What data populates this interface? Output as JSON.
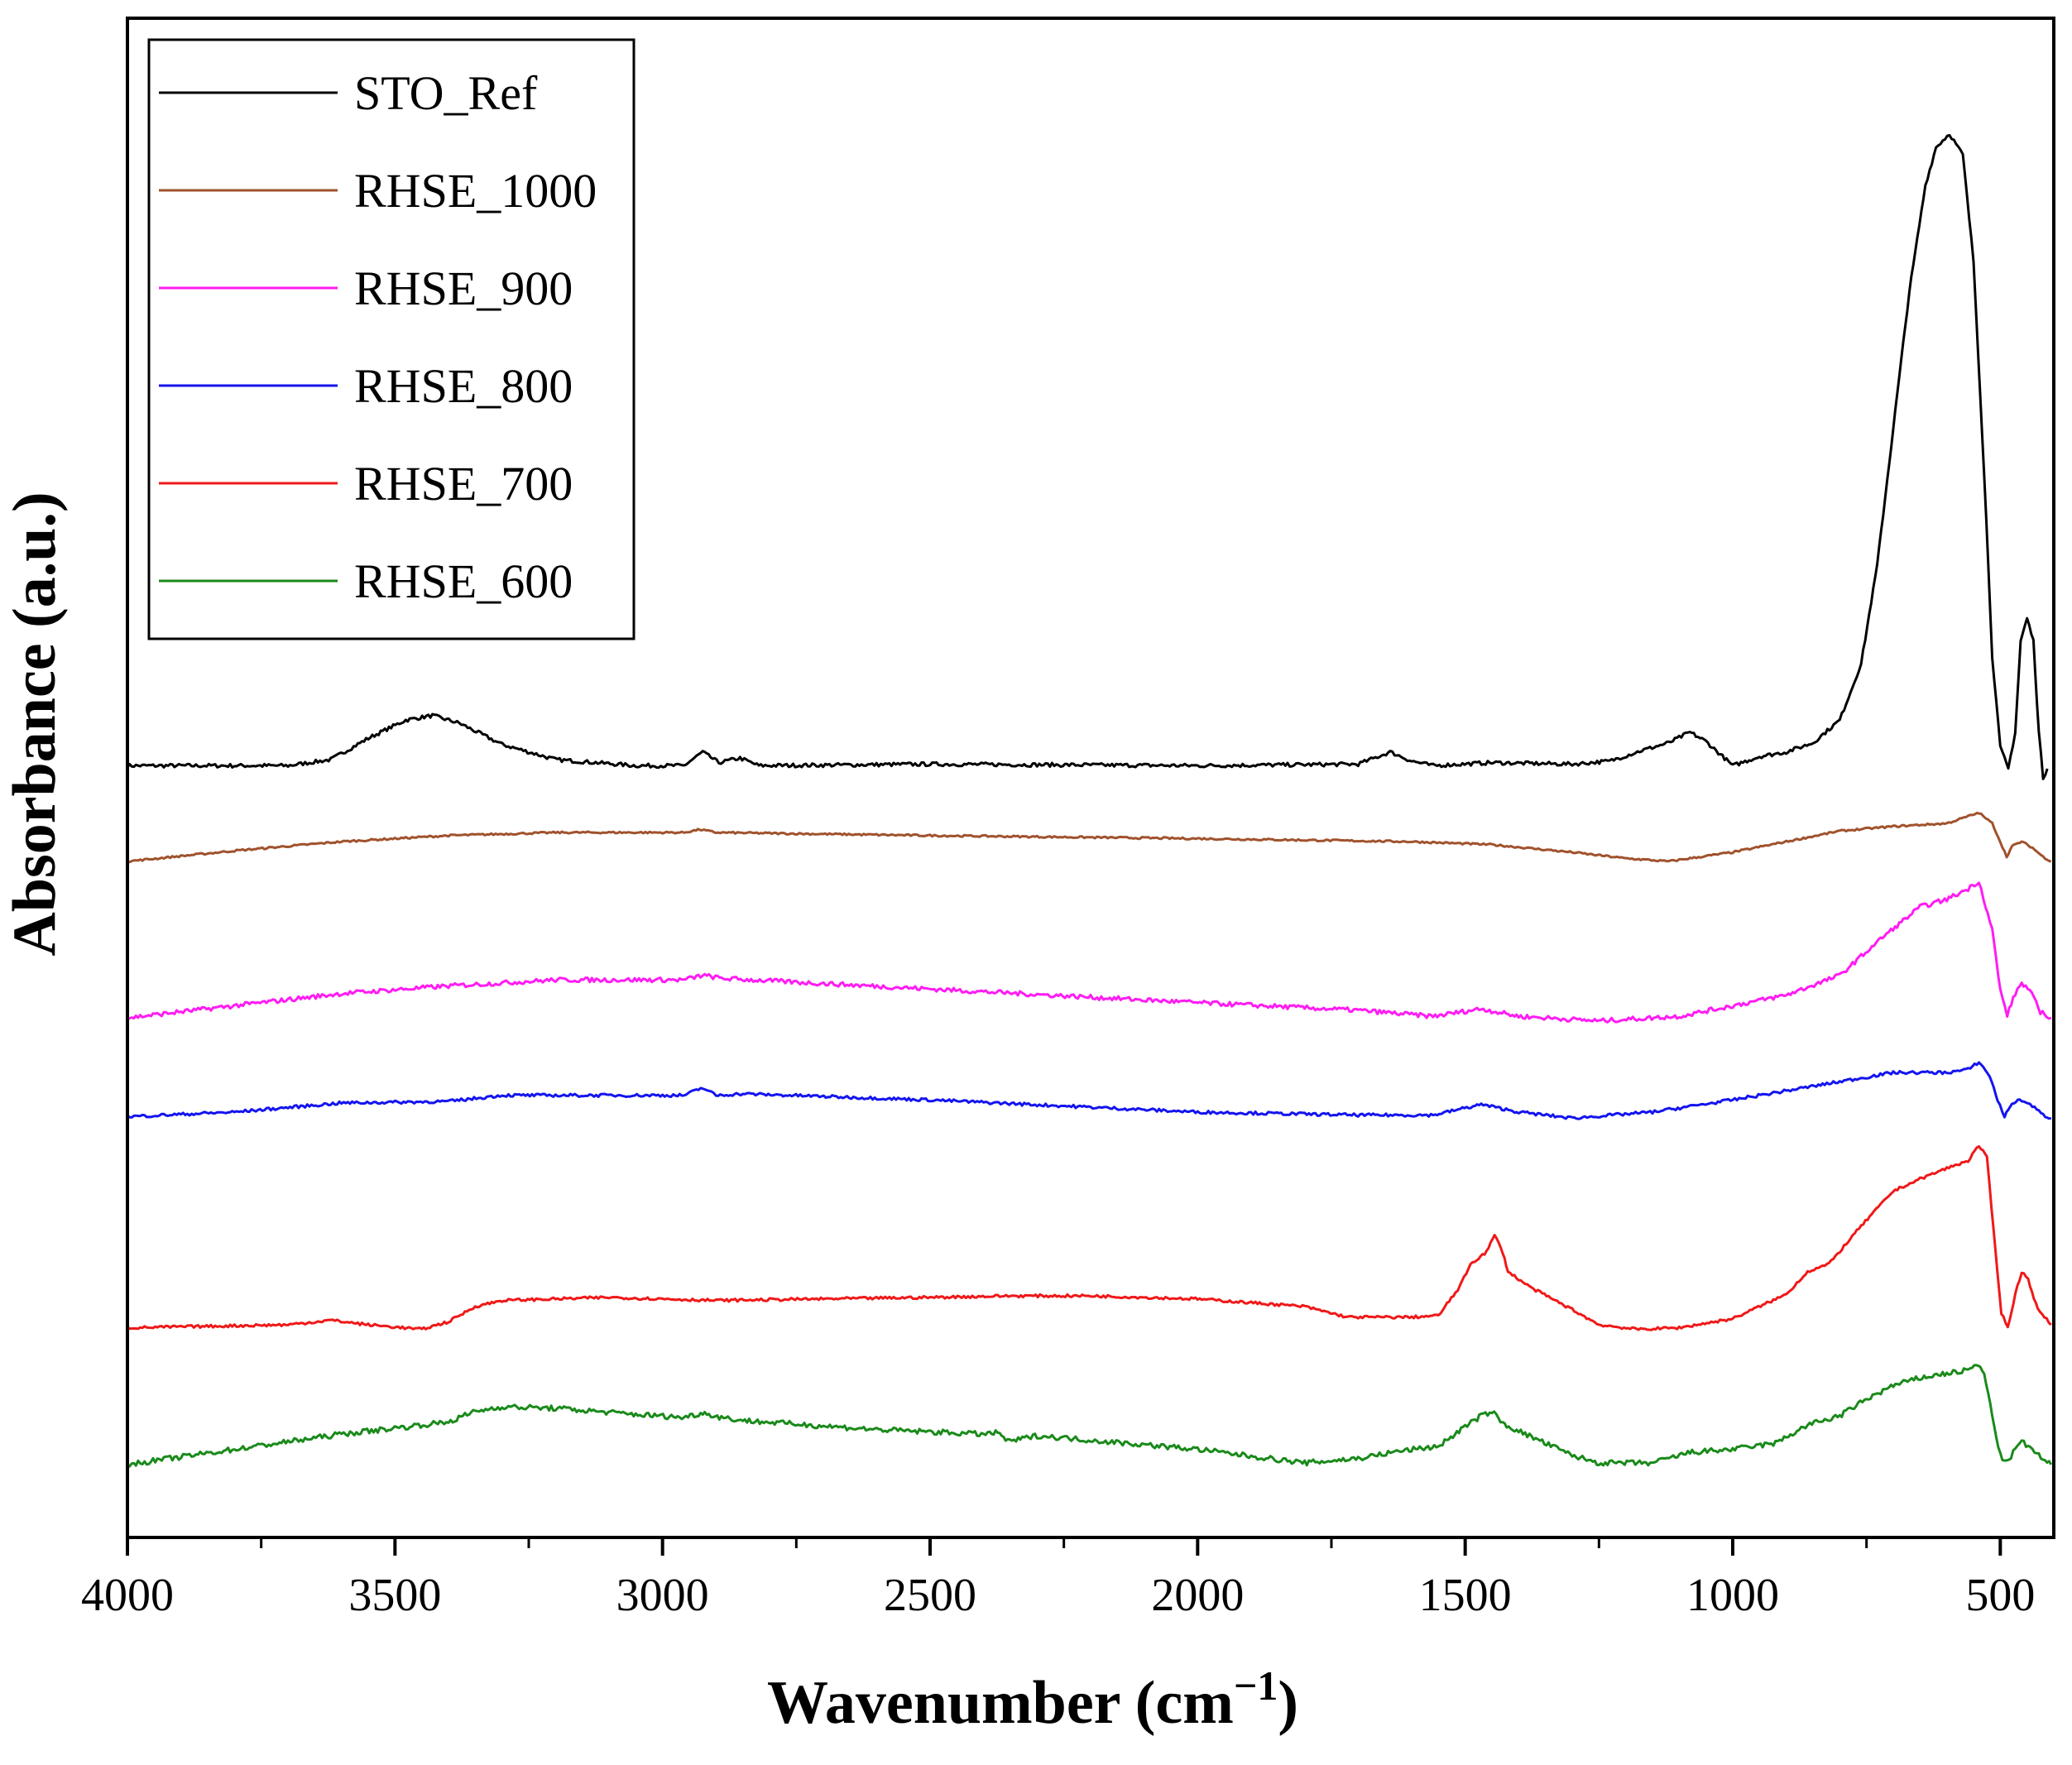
{
  "chart_data": {
    "type": "line",
    "title": "",
    "xlabel": "Wavenumber",
    "xlabel_unit_base": "cm",
    "xlabel_unit_exp": "−1",
    "xlabel_prefix": "(",
    "xlabel_suffix": ")",
    "ylabel": "Absorbance (a.u.)",
    "xlim": [
      4000,
      400
    ],
    "ylim": [
      0,
      100
    ],
    "x_reversed": true,
    "x_ticks": [
      4000,
      3500,
      3000,
      2500,
      2000,
      1500,
      1000,
      500
    ],
    "x_tick_labels": [
      "4000",
      "3500",
      "3000",
      "2500",
      "2000",
      "1500",
      "1000",
      "500"
    ],
    "y_ticks_shown": false,
    "legend": {
      "position": "top-left",
      "entries": [
        "STO_Ref",
        "RHSE_1000",
        "RHSE_900",
        "RHSE_800",
        "RHSE_700",
        "RHSE_600"
      ]
    },
    "series": [
      {
        "name": "STO_Ref",
        "color": "#000000",
        "noise": 0.25,
        "points": [
          [
            4000,
            50.8
          ],
          [
            3700,
            50.8
          ],
          [
            3620,
            51.2
          ],
          [
            3550,
            52.6
          ],
          [
            3480,
            53.8
          ],
          [
            3430,
            54.1
          ],
          [
            3380,
            53.6
          ],
          [
            3300,
            52.2
          ],
          [
            3200,
            51.2
          ],
          [
            3050,
            50.8
          ],
          [
            2960,
            50.8
          ],
          [
            2925,
            51.7
          ],
          [
            2895,
            51.0
          ],
          [
            2855,
            51.3
          ],
          [
            2820,
            50.8
          ],
          [
            2500,
            50.9
          ],
          [
            2000,
            50.8
          ],
          [
            1700,
            50.9
          ],
          [
            1640,
            51.7
          ],
          [
            1600,
            51.1
          ],
          [
            1560,
            50.8
          ],
          [
            1450,
            51.0
          ],
          [
            1300,
            50.9
          ],
          [
            1230,
            51.1
          ],
          [
            1170,
            51.8
          ],
          [
            1120,
            52.3
          ],
          [
            1080,
            53.0
          ],
          [
            1050,
            52.4
          ],
          [
            1000,
            50.8
          ],
          [
            950,
            51.4
          ],
          [
            900,
            51.7
          ],
          [
            850,
            52.3
          ],
          [
            800,
            53.8
          ],
          [
            760,
            57.5
          ],
          [
            730,
            64.0
          ],
          [
            700,
            73.0
          ],
          [
            670,
            82.0
          ],
          [
            640,
            89.0
          ],
          [
            620,
            91.5
          ],
          [
            595,
            92.4
          ],
          [
            570,
            91.0
          ],
          [
            550,
            84.0
          ],
          [
            530,
            70.0
          ],
          [
            515,
            58.0
          ],
          [
            500,
            52.0
          ],
          [
            485,
            50.6
          ],
          [
            472,
            53.0
          ],
          [
            462,
            59.0
          ],
          [
            450,
            60.5
          ],
          [
            438,
            59.0
          ],
          [
            428,
            53.0
          ],
          [
            420,
            50.0
          ],
          [
            412,
            50.6
          ]
        ]
      },
      {
        "name": "RHSE_1000",
        "color": "#A0522D",
        "noise": 0.12,
        "points": [
          [
            4000,
            44.5
          ],
          [
            3800,
            45.2
          ],
          [
            3600,
            45.8
          ],
          [
            3400,
            46.2
          ],
          [
            3200,
            46.4
          ],
          [
            2960,
            46.4
          ],
          [
            2930,
            46.6
          ],
          [
            2900,
            46.4
          ],
          [
            2500,
            46.2
          ],
          [
            2000,
            46.0
          ],
          [
            1600,
            45.8
          ],
          [
            1450,
            45.6
          ],
          [
            1300,
            45.1
          ],
          [
            1200,
            44.7
          ],
          [
            1120,
            44.5
          ],
          [
            1000,
            45.1
          ],
          [
            900,
            45.8
          ],
          [
            800,
            46.5
          ],
          [
            700,
            46.8
          ],
          [
            600,
            47.0
          ],
          [
            540,
            47.7
          ],
          [
            515,
            47.0
          ],
          [
            500,
            45.8
          ],
          [
            488,
            44.8
          ],
          [
            478,
            45.5
          ],
          [
            460,
            45.8
          ],
          [
            440,
            45.4
          ],
          [
            420,
            44.8
          ],
          [
            405,
            44.5
          ]
        ]
      },
      {
        "name": "RHSE_900",
        "color": "#FF1CF3",
        "noise": 0.3,
        "points": [
          [
            4000,
            34.2
          ],
          [
            3800,
            35.0
          ],
          [
            3600,
            35.8
          ],
          [
            3400,
            36.3
          ],
          [
            3200,
            36.7
          ],
          [
            2960,
            36.7
          ],
          [
            2925,
            37.0
          ],
          [
            2890,
            36.8
          ],
          [
            2500,
            36.1
          ],
          [
            2000,
            35.2
          ],
          [
            1700,
            34.7
          ],
          [
            1560,
            34.3
          ],
          [
            1470,
            34.8
          ],
          [
            1400,
            34.3
          ],
          [
            1250,
            34.0
          ],
          [
            1100,
            34.3
          ],
          [
            1000,
            35.0
          ],
          [
            900,
            35.7
          ],
          [
            800,
            37.0
          ],
          [
            720,
            39.5
          ],
          [
            650,
            41.5
          ],
          [
            600,
            42.0
          ],
          [
            560,
            42.7
          ],
          [
            540,
            43.2
          ],
          [
            515,
            40.0
          ],
          [
            500,
            36.0
          ],
          [
            487,
            34.4
          ],
          [
            472,
            35.8
          ],
          [
            460,
            36.5
          ],
          [
            445,
            36.0
          ],
          [
            425,
            34.6
          ],
          [
            405,
            34.2
          ]
        ]
      },
      {
        "name": "RHSE_800",
        "color": "#1414F0",
        "noise": 0.2,
        "points": [
          [
            4000,
            27.7
          ],
          [
            3800,
            28.0
          ],
          [
            3600,
            28.6
          ],
          [
            3400,
            28.7
          ],
          [
            3300,
            29.1
          ],
          [
            3000,
            29.1
          ],
          [
            2960,
            29.1
          ],
          [
            2925,
            29.6
          ],
          [
            2900,
            29.1
          ],
          [
            2850,
            29.2
          ],
          [
            2500,
            28.8
          ],
          [
            2000,
            28.0
          ],
          [
            1700,
            27.8
          ],
          [
            1560,
            27.8
          ],
          [
            1470,
            28.5
          ],
          [
            1400,
            28.0
          ],
          [
            1300,
            27.6
          ],
          [
            1150,
            28.0
          ],
          [
            1000,
            28.8
          ],
          [
            900,
            29.4
          ],
          [
            800,
            30.0
          ],
          [
            700,
            30.6
          ],
          [
            600,
            30.6
          ],
          [
            560,
            30.8
          ],
          [
            540,
            31.3
          ],
          [
            520,
            30.4
          ],
          [
            505,
            28.8
          ],
          [
            492,
            27.7
          ],
          [
            478,
            28.6
          ],
          [
            460,
            28.8
          ],
          [
            440,
            28.4
          ],
          [
            420,
            27.8
          ],
          [
            405,
            27.6
          ]
        ]
      },
      {
        "name": "RHSE_700",
        "color": "#F01818",
        "noise": 0.18,
        "points": [
          [
            4000,
            13.8
          ],
          [
            3700,
            14.0
          ],
          [
            3620,
            14.3
          ],
          [
            3550,
            14.0
          ],
          [
            3450,
            13.7
          ],
          [
            3400,
            14.2
          ],
          [
            3350,
            15.2
          ],
          [
            3300,
            15.6
          ],
          [
            3100,
            15.8
          ],
          [
            2900,
            15.6
          ],
          [
            2500,
            15.8
          ],
          [
            2350,
            15.9
          ],
          [
            2200,
            15.9
          ],
          [
            2000,
            15.7
          ],
          [
            1800,
            15.2
          ],
          [
            1720,
            14.5
          ],
          [
            1600,
            14.5
          ],
          [
            1550,
            14.6
          ],
          [
            1510,
            16.5
          ],
          [
            1490,
            18.0
          ],
          [
            1460,
            18.8
          ],
          [
            1445,
            19.9
          ],
          [
            1430,
            18.8
          ],
          [
            1420,
            17.5
          ],
          [
            1380,
            16.5
          ],
          [
            1300,
            15.0
          ],
          [
            1250,
            14.0
          ],
          [
            1180,
            13.7
          ],
          [
            1100,
            13.8
          ],
          [
            1000,
            14.4
          ],
          [
            900,
            16.0
          ],
          [
            860,
            17.5
          ],
          [
            820,
            18.0
          ],
          [
            760,
            20.5
          ],
          [
            700,
            22.8
          ],
          [
            650,
            23.6
          ],
          [
            600,
            24.3
          ],
          [
            560,
            24.8
          ],
          [
            540,
            25.8
          ],
          [
            525,
            25.0
          ],
          [
            512,
            20.0
          ],
          [
            498,
            14.8
          ],
          [
            486,
            13.8
          ],
          [
            472,
            16.0
          ],
          [
            460,
            17.5
          ],
          [
            448,
            17.0
          ],
          [
            430,
            15.0
          ],
          [
            405,
            14.0
          ]
        ]
      },
      {
        "name": "RHSE_600",
        "color": "#1A8A1A",
        "noise": 0.35,
        "points": [
          [
            4000,
            4.8
          ],
          [
            3800,
            5.8
          ],
          [
            3600,
            6.8
          ],
          [
            3500,
            7.2
          ],
          [
            3400,
            7.6
          ],
          [
            3350,
            8.3
          ],
          [
            3300,
            8.6
          ],
          [
            3200,
            8.5
          ],
          [
            3050,
            8.1
          ],
          [
            2960,
            7.9
          ],
          [
            2925,
            8.2
          ],
          [
            2890,
            7.9
          ],
          [
            2850,
            7.7
          ],
          [
            2600,
            7.1
          ],
          [
            2400,
            6.8
          ],
          [
            2370,
            6.9
          ],
          [
            2355,
            6.3
          ],
          [
            2300,
            6.7
          ],
          [
            2000,
            5.8
          ],
          [
            1800,
            4.9
          ],
          [
            1700,
            5.2
          ],
          [
            1620,
            5.7
          ],
          [
            1550,
            6.0
          ],
          [
            1500,
            7.3
          ],
          [
            1470,
            8.0
          ],
          [
            1450,
            8.3
          ],
          [
            1430,
            7.5
          ],
          [
            1400,
            7.0
          ],
          [
            1300,
            5.4
          ],
          [
            1250,
            4.9
          ],
          [
            1150,
            4.9
          ],
          [
            1080,
            5.6
          ],
          [
            1000,
            5.8
          ],
          [
            920,
            6.2
          ],
          [
            860,
            7.4
          ],
          [
            800,
            8.0
          ],
          [
            750,
            9.1
          ],
          [
            700,
            10.0
          ],
          [
            650,
            10.5
          ],
          [
            600,
            10.8
          ],
          [
            560,
            11.0
          ],
          [
            545,
            11.4
          ],
          [
            530,
            10.8
          ],
          [
            515,
            8.0
          ],
          [
            500,
            5.4
          ],
          [
            488,
            4.9
          ],
          [
            472,
            5.8
          ],
          [
            460,
            6.3
          ],
          [
            440,
            5.8
          ],
          [
            420,
            5.1
          ],
          [
            405,
            4.8
          ]
        ]
      }
    ]
  }
}
